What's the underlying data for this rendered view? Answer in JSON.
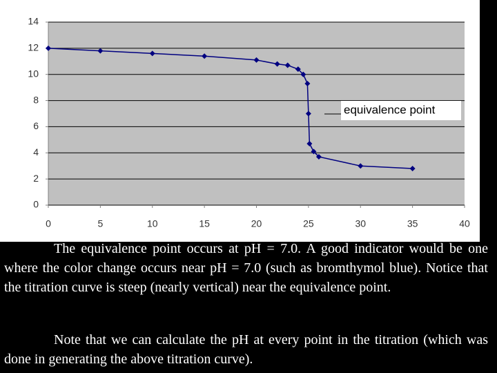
{
  "chart_data": {
    "type": "line",
    "x": [
      0,
      5,
      10,
      15,
      20,
      22,
      23,
      24,
      24.5,
      24.9,
      25,
      25.1,
      25.5,
      26,
      30,
      35
    ],
    "values": [
      12.0,
      11.8,
      11.6,
      11.4,
      11.1,
      10.8,
      10.7,
      10.4,
      10.0,
      9.3,
      7.0,
      4.7,
      4.1,
      3.7,
      3.0,
      2.8
    ],
    "color": "#000080",
    "xlim": [
      0,
      40
    ],
    "xticks": [
      0,
      5,
      10,
      15,
      20,
      25,
      30,
      35,
      40
    ],
    "ylim": [
      0,
      14
    ],
    "yticks": [
      0,
      2,
      4,
      6,
      8,
      10,
      12,
      14
    ],
    "grid": true,
    "annotation": "equivalence point"
  },
  "paragraphs": [
    "The equivalence point occurs at pH = 7.0.  A good indicator would be one where the color change occurs near pH = 7.0 (such as bromthymol blue).  Notice that the titration curve is steep (nearly vertical) near the equivalence point.",
    "Note that we can calculate the pH at every point in the titration (which was done in generating the above titration curve)."
  ]
}
